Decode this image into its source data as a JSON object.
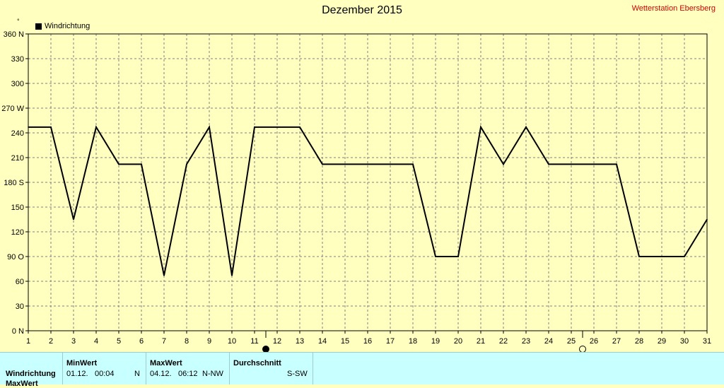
{
  "header": {
    "title": "Dezember 2015",
    "station": "Wetterstation Ebersberg"
  },
  "legend": {
    "label": "Windrichtung",
    "ylabel_symbol": "°"
  },
  "chart_data": {
    "type": "line",
    "title": "Dezember 2015",
    "xlabel": "",
    "ylabel": "°",
    "x": [
      1,
      2,
      3,
      4,
      5,
      6,
      7,
      8,
      9,
      10,
      11,
      12,
      13,
      14,
      15,
      16,
      17,
      18,
      19,
      20,
      21,
      22,
      23,
      24,
      25,
      26,
      27,
      28,
      29,
      30,
      31
    ],
    "series": [
      {
        "name": "Windrichtung",
        "values": [
          247,
          247,
          135,
          247,
          202,
          202,
          67,
          202,
          247,
          67,
          247,
          247,
          247,
          202,
          202,
          202,
          202,
          202,
          90,
          90,
          247,
          202,
          247,
          202,
          202,
          202,
          202,
          90,
          90,
          90,
          135
        ]
      }
    ],
    "xlim": [
      1,
      31
    ],
    "ylim": [
      0,
      360
    ],
    "yticks": [
      0,
      30,
      60,
      90,
      120,
      150,
      180,
      210,
      240,
      270,
      300,
      330,
      360
    ],
    "ytick_labels": [
      "0 N",
      "30",
      "60",
      "90 O",
      "120",
      "150",
      "180 S",
      "210",
      "240",
      "270 W",
      "300",
      "330",
      "360 N"
    ],
    "grid": true,
    "legend_position": "top-left",
    "line_color": "#000000",
    "moon_phases": [
      {
        "day": 11.5,
        "phase": "new-moon"
      },
      {
        "day": 25.5,
        "phase": "full-moon"
      }
    ]
  },
  "stats": {
    "row_label": "Windrichtung",
    "row_label_2": "MaxWert",
    "min": {
      "header": "MinWert",
      "date": "01.12.",
      "time": "00:04",
      "dir": "N"
    },
    "max": {
      "header": "MaxWert",
      "date": "04.12.",
      "time": "06:12",
      "dir": "N-NW"
    },
    "avg": {
      "header": "Durchschnitt",
      "value": "S-SW"
    }
  }
}
